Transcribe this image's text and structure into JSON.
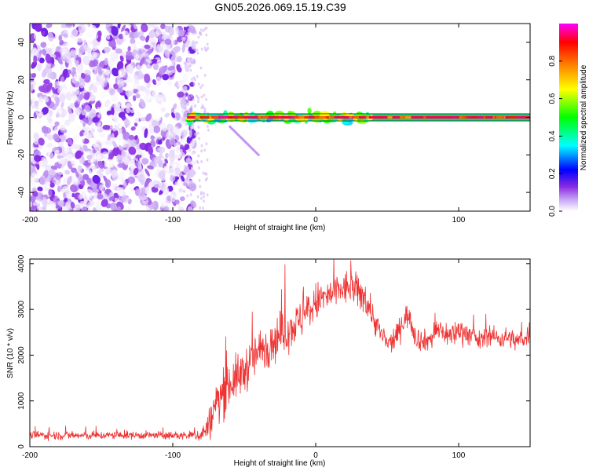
{
  "title": "GN05.2026.069.15.19.C39",
  "chart_data": [
    {
      "type": "heatmap",
      "xlabel": "Height of straight line (km)",
      "ylabel": "Frequency (Hz)",
      "xlim": [
        -200,
        150
      ],
      "ylim": [
        -50,
        50
      ],
      "xticks": [
        -200,
        -100,
        0,
        100
      ],
      "yticks": [
        -40,
        -20,
        0,
        20,
        40
      ],
      "colorbar": {
        "label": "Normalized spectral amplitude",
        "range": [
          0,
          1
        ],
        "ticks": [
          0.0,
          0.2,
          0.4,
          0.6,
          0.8
        ],
        "tick_labels": [
          "0.0",
          "0.2",
          "0.4",
          "0.6",
          "0.8"
        ],
        "colormap": [
          "#ffffff",
          "#8a2be2",
          "#0000ff",
          "#00ffff",
          "#00ff00",
          "#ffff00",
          "#ff8000",
          "#ff0000",
          "#ff00ff"
        ]
      },
      "regions": [
        {
          "x_range": [
            -200,
            -85
          ],
          "y_range": [
            -50,
            50
          ],
          "amplitude": [
            0.0,
            0.15
          ],
          "pattern": "scattered speckle noise"
        },
        {
          "x_range": [
            -90,
            150
          ],
          "y_center": 0,
          "half_width_hz": 1.5,
          "amplitude": [
            0.6,
            1.0
          ],
          "pattern": "narrow carrier line"
        },
        {
          "x_range": [
            -60,
            -40
          ],
          "y_range": [
            -20,
            -5
          ],
          "amplitude": [
            0.05,
            0.15
          ],
          "pattern": "faint diagonal trace"
        }
      ]
    },
    {
      "type": "line",
      "xlabel": "Height of straight line (km)",
      "ylabel": "SNR (10 * v/v)",
      "xlim": [
        -200,
        150
      ],
      "ylim": [
        0,
        4100
      ],
      "xticks": [
        -200,
        -100,
        0,
        100
      ],
      "yticks": [
        0,
        1000,
        2000,
        3000,
        4000
      ],
      "series": [
        {
          "color": "#ee3333",
          "x": [
            -200,
            -180,
            -160,
            -140,
            -120,
            -100,
            -90,
            -80,
            -75,
            -70,
            -65,
            -60,
            -55,
            -50,
            -45,
            -40,
            -35,
            -30,
            -25,
            -20,
            -15,
            -10,
            -5,
            0,
            5,
            10,
            15,
            20,
            25,
            30,
            35,
            40,
            45,
            50,
            55,
            60,
            65,
            70,
            75,
            80,
            85,
            90,
            95,
            100,
            105,
            110,
            115,
            120,
            125,
            130,
            135,
            140,
            145,
            150
          ],
          "y": [
            250,
            250,
            240,
            250,
            250,
            240,
            240,
            260,
            450,
            900,
            1200,
            1400,
            1500,
            1650,
            1900,
            2050,
            2200,
            2300,
            2450,
            2550,
            2650,
            2800,
            2950,
            3150,
            3250,
            3300,
            3400,
            3450,
            3500,
            3350,
            3250,
            2850,
            2500,
            2250,
            2300,
            2700,
            2900,
            2400,
            2300,
            2350,
            2550,
            2500,
            2400,
            2550,
            2500,
            2400,
            2300,
            2450,
            2400,
            2350,
            2400,
            2300,
            2350,
            2500
          ],
          "noise": [
            80,
            90,
            80,
            80,
            80,
            80,
            80,
            150,
            300,
            500,
            500,
            500,
            450,
            450,
            450,
            450,
            450,
            450,
            450,
            450,
            400,
            400,
            400,
            400,
            350,
            350,
            350,
            350,
            350,
            350,
            350,
            300,
            250,
            200,
            200,
            250,
            250,
            250,
            200,
            250,
            250,
            250,
            250,
            250,
            250,
            200,
            200,
            200,
            200,
            200,
            200,
            200,
            200,
            250
          ]
        }
      ]
    }
  ]
}
